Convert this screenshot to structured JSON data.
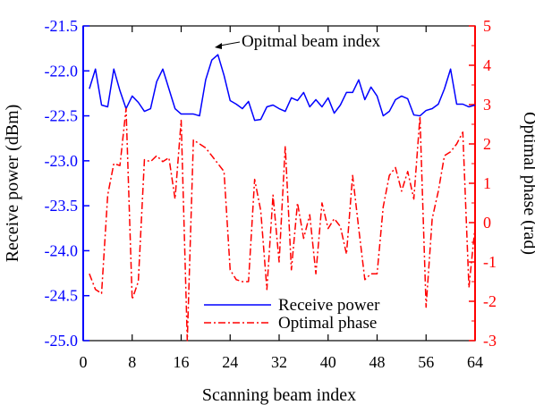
{
  "chart_data": {
    "type": "line",
    "x_axis": {
      "label": "Scanning beam index",
      "min": 0,
      "max": 64,
      "ticks": [
        0,
        8,
        16,
        24,
        32,
        40,
        48,
        56,
        64
      ]
    },
    "y_left": {
      "label": "Receive power (dBm)",
      "min": -25.0,
      "max": -21.5,
      "color": "#0000ff",
      "ticks": [
        -21.5,
        -22.0,
        -22.5,
        -23.0,
        -23.5,
        -24.0,
        -24.5,
        -25.0
      ]
    },
    "y_right": {
      "label": "Optimal phase (rad)",
      "min": -3,
      "max": 5,
      "color": "#ff0000",
      "ticks": [
        5,
        4,
        3,
        2,
        1,
        0,
        -1,
        -2,
        -3
      ]
    },
    "legend": {
      "placement": "bottom-center",
      "entries": [
        "Receive power",
        "Optimal phase"
      ]
    },
    "annotation": {
      "text": "Opitmal beam index",
      "x": 21,
      "y": -21.78
    },
    "series": [
      {
        "name": "Receive power",
        "axis": "left",
        "color": "#0000ff",
        "style": "solid",
        "x": [
          1,
          2,
          3,
          4,
          5,
          6,
          7,
          8,
          9,
          10,
          11,
          12,
          13,
          14,
          15,
          16,
          17,
          18,
          19,
          20,
          21,
          22,
          23,
          24,
          25,
          26,
          27,
          28,
          29,
          30,
          31,
          32,
          33,
          34,
          35,
          36,
          37,
          38,
          39,
          40,
          41,
          42,
          43,
          44,
          45,
          46,
          47,
          48,
          49,
          50,
          51,
          52,
          53,
          54,
          55,
          56,
          57,
          58,
          59,
          60,
          61,
          62,
          63,
          64
        ],
        "y": [
          -22.2,
          -21.98,
          -22.38,
          -22.4,
          -21.98,
          -22.22,
          -22.42,
          -22.28,
          -22.35,
          -22.45,
          -22.42,
          -22.12,
          -21.98,
          -22.2,
          -22.42,
          -22.48,
          -22.48,
          -22.48,
          -22.5,
          -22.1,
          -21.88,
          -21.82,
          -22.05,
          -22.33,
          -22.37,
          -22.42,
          -22.34,
          -22.55,
          -22.54,
          -22.4,
          -22.38,
          -22.42,
          -22.45,
          -22.3,
          -22.33,
          -22.24,
          -22.4,
          -22.32,
          -22.4,
          -22.3,
          -22.47,
          -22.38,
          -22.24,
          -22.24,
          -22.1,
          -22.32,
          -22.18,
          -22.28,
          -22.5,
          -22.45,
          -22.32,
          -22.28,
          -22.31,
          -22.49,
          -22.5,
          -22.44,
          -22.42,
          -22.37,
          -22.2,
          -21.98,
          -22.37,
          -22.37,
          -22.4,
          -22.38
        ]
      },
      {
        "name": "Optimal phase",
        "axis": "right",
        "color": "#ff0000",
        "style": "dash-dot",
        "x": [
          1,
          2,
          3,
          4,
          5,
          6,
          7,
          8,
          9,
          10,
          11,
          12,
          13,
          14,
          15,
          16,
          17,
          18,
          19,
          20,
          21,
          22,
          23,
          24,
          25,
          26,
          27,
          28,
          29,
          30,
          31,
          32,
          33,
          34,
          35,
          36,
          37,
          38,
          39,
          40,
          41,
          42,
          43,
          44,
          45,
          46,
          47,
          48,
          49,
          50,
          51,
          52,
          53,
          54,
          55,
          56,
          57,
          58,
          59,
          60,
          61,
          62,
          63,
          64
        ],
        "y": [
          -1.3,
          -1.7,
          -1.8,
          0.7,
          1.5,
          1.45,
          2.9,
          -1.95,
          -1.5,
          1.6,
          1.55,
          1.7,
          1.55,
          1.65,
          0.6,
          2.6,
          -3.0,
          2.1,
          2.0,
          1.9,
          1.7,
          1.5,
          1.3,
          -1.2,
          -1.45,
          -1.5,
          -1.5,
          1.1,
          0.3,
          -1.7,
          0.7,
          -1.0,
          1.95,
          -1.2,
          0.5,
          -0.4,
          0.2,
          -1.3,
          0.5,
          -0.15,
          0.1,
          -0.1,
          -0.8,
          1.2,
          -0.15,
          -1.45,
          -1.3,
          -1.3,
          0.4,
          1.2,
          1.4,
          0.8,
          1.3,
          0.6,
          2.7,
          -2.15,
          0.1,
          0.8,
          1.7,
          1.8,
          2.0,
          2.3,
          -1.65,
          -0.1
        ]
      }
    ]
  }
}
